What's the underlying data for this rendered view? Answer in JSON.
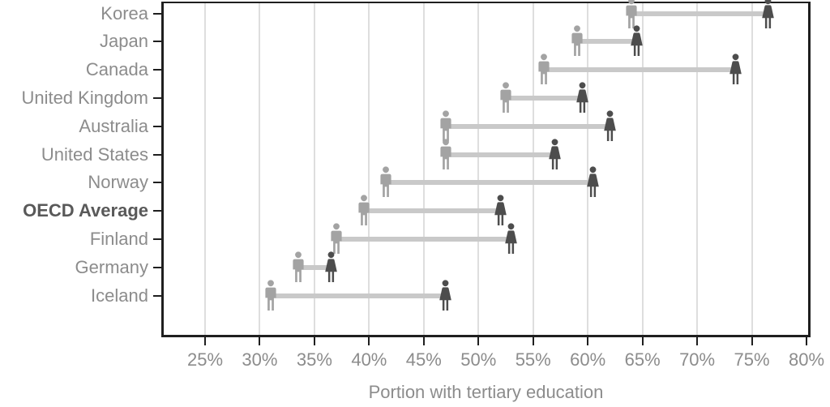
{
  "chart_data": {
    "type": "dumbbell",
    "title": "",
    "xlabel": "Portion with tertiary education",
    "ylabel": "",
    "x_tick_values": [
      25,
      30,
      35,
      40,
      45,
      50,
      55,
      60,
      65,
      70,
      75,
      80
    ],
    "x_tick_suffix": "%",
    "x_axis_range": [
      21.2,
      80.2
    ],
    "grid": true,
    "legend_position": "none",
    "series_names": [
      "men",
      "women"
    ],
    "icons": {
      "men": "man-icon",
      "women": "woman-icon"
    },
    "rows": [
      {
        "country": "Korea",
        "men": 64,
        "women": 76.5,
        "emphasis": false
      },
      {
        "country": "Japan",
        "men": 59,
        "women": 64.5,
        "emphasis": false
      },
      {
        "country": "Canada",
        "men": 56,
        "women": 73.5,
        "emphasis": false
      },
      {
        "country": "United Kingdom",
        "men": 52.5,
        "women": 59.5,
        "emphasis": false
      },
      {
        "country": "Australia",
        "men": 47,
        "women": 62,
        "emphasis": false
      },
      {
        "country": "United States",
        "men": 47,
        "women": 57,
        "emphasis": false
      },
      {
        "country": "Norway",
        "men": 41.5,
        "women": 60.5,
        "emphasis": false
      },
      {
        "country": "OECD Average",
        "men": 39.5,
        "women": 52,
        "emphasis": true
      },
      {
        "country": "Finland",
        "men": 37,
        "women": 53,
        "emphasis": false
      },
      {
        "country": "Germany",
        "men": 33.5,
        "women": 36.5,
        "emphasis": false
      },
      {
        "country": "Iceland",
        "men": 31,
        "women": 47,
        "emphasis": false
      }
    ]
  },
  "colors": {
    "men_icon": "#a3a3a3",
    "women_icon": "#4d4d4d",
    "connector_bar": "#c9c9c9",
    "gridline": "#dedede",
    "axis_frame": "#1f1f1f",
    "tick_label": "#8c8c8c",
    "category_label": "#8c8c8c",
    "emphasis_label": "#595959"
  }
}
